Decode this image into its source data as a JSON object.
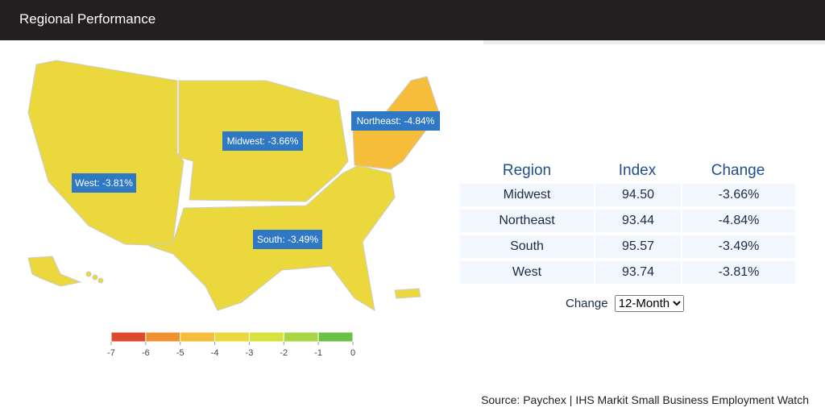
{
  "header": {
    "title": "Regional Performance"
  },
  "map": {
    "regions": [
      {
        "label": "West: -3.81%",
        "value": -3.81
      },
      {
        "label": "Midwest: -3.66%",
        "value": -3.66
      },
      {
        "label": "South: -3.49%",
        "value": -3.49
      },
      {
        "label": "Northeast: -4.84%",
        "value": -4.84
      }
    ]
  },
  "legend": {
    "lim": [
      -7,
      0
    ],
    "ticks": [
      -7,
      -6,
      -5,
      -4,
      -3,
      -2,
      -1,
      0
    ],
    "colors": [
      "#dd4a2c",
      "#f0912f",
      "#f5bd3a",
      "#ebd83d",
      "#d9e23c",
      "#a9d645",
      "#6cc043"
    ]
  },
  "table": {
    "columns": [
      "Region",
      "Index",
      "Change"
    ],
    "rows": [
      [
        "Midwest",
        "94.50",
        "-3.66%"
      ],
      [
        "Northeast",
        "93.44",
        "-4.84%"
      ],
      [
        "South",
        "95.57",
        "-3.49%"
      ],
      [
        "West",
        "93.74",
        "-3.81%"
      ]
    ]
  },
  "controls": {
    "label": "Change",
    "option": "12-Month"
  },
  "source": "Source: Paychex | IHS Markit Small Business Employment Watch"
}
